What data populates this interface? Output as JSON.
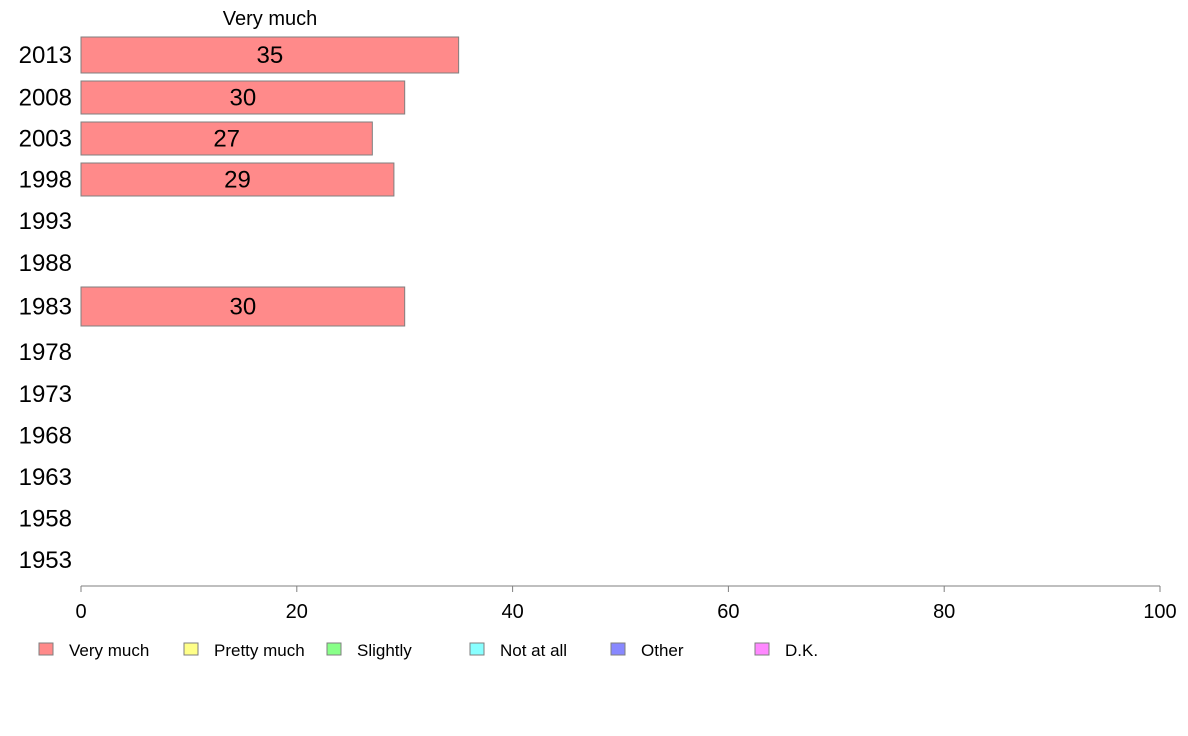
{
  "chart_data": {
    "type": "bar",
    "orientation": "horizontal",
    "title": "",
    "category_header": "Very much",
    "categories": [
      "2013",
      "2008",
      "2003",
      "1998",
      "1993",
      "1988",
      "1983",
      "1978",
      "1973",
      "1968",
      "1963",
      "1958",
      "1953"
    ],
    "series": [
      {
        "name": "Very much",
        "color": "#ff8a8a",
        "values": [
          35,
          30,
          27,
          29,
          null,
          null,
          30,
          null,
          null,
          null,
          null,
          null,
          null
        ]
      },
      {
        "name": "Pretty much",
        "color": "#ffff88",
        "values": [
          null,
          null,
          null,
          null,
          null,
          null,
          null,
          null,
          null,
          null,
          null,
          null,
          null
        ]
      },
      {
        "name": "Slightly",
        "color": "#88ff88",
        "values": [
          null,
          null,
          null,
          null,
          null,
          null,
          null,
          null,
          null,
          null,
          null,
          null,
          null
        ]
      },
      {
        "name": "Not at all",
        "color": "#88ffff",
        "values": [
          null,
          null,
          null,
          null,
          null,
          null,
          null,
          null,
          null,
          null,
          null,
          null,
          null
        ]
      },
      {
        "name": "Other",
        "color": "#8888ff",
        "values": [
          null,
          null,
          null,
          null,
          null,
          null,
          null,
          null,
          null,
          null,
          null,
          null,
          null
        ]
      },
      {
        "name": "D.K.",
        "color": "#ff88ff",
        "values": [
          null,
          null,
          null,
          null,
          null,
          null,
          null,
          null,
          null,
          null,
          null,
          null,
          null
        ]
      }
    ],
    "x_ticks": [
      0,
      20,
      40,
      60,
      80,
      100
    ],
    "xlim": [
      0,
      100
    ],
    "xlabel": "",
    "ylabel": "",
    "grid": false,
    "legend_position": "bottom"
  }
}
